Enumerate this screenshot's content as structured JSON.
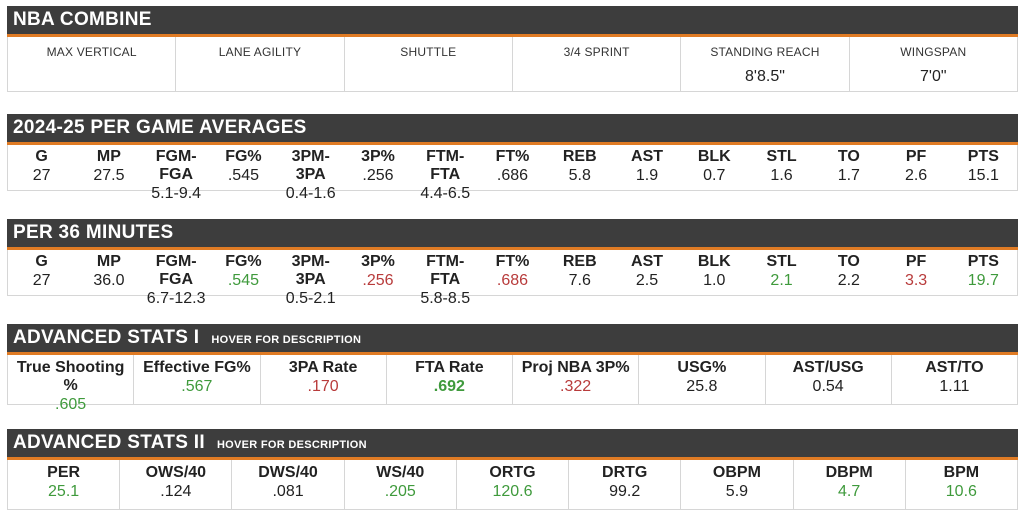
{
  "colors": {
    "header_bg": "#3d3d3d",
    "accent": "#e07b24",
    "positive": "#3f9a3c",
    "negative": "#b83b3b"
  },
  "combine": {
    "title": "NBA COMBINE",
    "columns": [
      {
        "label": "MAX VERTICAL",
        "value": ""
      },
      {
        "label": "LANE AGILITY",
        "value": ""
      },
      {
        "label": "SHUTTLE",
        "value": ""
      },
      {
        "label": "3/4 SPRINT",
        "value": ""
      },
      {
        "label": "STANDING REACH",
        "value": "8'8.5\""
      },
      {
        "label": "WINGSPAN",
        "value": "7'0\""
      }
    ]
  },
  "per_game": {
    "title": "2024-25 PER GAME AVERAGES",
    "columns": [
      {
        "label": "G",
        "value": "27"
      },
      {
        "label": "MP",
        "value": "27.5"
      },
      {
        "label": "FGM-FGA",
        "value": "5.1-9.4"
      },
      {
        "label": "FG%",
        "value": ".545"
      },
      {
        "label": "3PM-3PA",
        "value": "0.4-1.6"
      },
      {
        "label": "3P%",
        "value": ".256"
      },
      {
        "label": "FTM-FTA",
        "value": "4.4-6.5"
      },
      {
        "label": "FT%",
        "value": ".686"
      },
      {
        "label": "REB",
        "value": "5.8"
      },
      {
        "label": "AST",
        "value": "1.9"
      },
      {
        "label": "BLK",
        "value": "0.7"
      },
      {
        "label": "STL",
        "value": "1.6"
      },
      {
        "label": "TO",
        "value": "1.7"
      },
      {
        "label": "PF",
        "value": "2.6"
      },
      {
        "label": "PTS",
        "value": "15.1"
      }
    ]
  },
  "per36": {
    "title": "PER 36 MINUTES",
    "columns": [
      {
        "label": "G",
        "value": "27",
        "tone": ""
      },
      {
        "label": "MP",
        "value": "36.0",
        "tone": ""
      },
      {
        "label": "FGM-FGA",
        "value": "6.7-12.3",
        "tone": ""
      },
      {
        "label": "FG%",
        "value": ".545",
        "tone": "green"
      },
      {
        "label": "3PM-3PA",
        "value": "0.5-2.1",
        "tone": ""
      },
      {
        "label": "3P%",
        "value": ".256",
        "tone": "red"
      },
      {
        "label": "FTM-FTA",
        "value": "5.8-8.5",
        "tone": ""
      },
      {
        "label": "FT%",
        "value": ".686",
        "tone": "red"
      },
      {
        "label": "REB",
        "value": "7.6",
        "tone": ""
      },
      {
        "label": "AST",
        "value": "2.5",
        "tone": ""
      },
      {
        "label": "BLK",
        "value": "1.0",
        "tone": ""
      },
      {
        "label": "STL",
        "value": "2.1",
        "tone": "green"
      },
      {
        "label": "TO",
        "value": "2.2",
        "tone": ""
      },
      {
        "label": "PF",
        "value": "3.3",
        "tone": "red"
      },
      {
        "label": "PTS",
        "value": "19.7",
        "tone": "green"
      }
    ]
  },
  "advanced1": {
    "title": "ADVANCED STATS I",
    "hint": "HOVER FOR DESCRIPTION",
    "columns": [
      {
        "label": "True Shooting %",
        "value": ".605",
        "tone": "green"
      },
      {
        "label": "Effective FG%",
        "value": ".567",
        "tone": "green"
      },
      {
        "label": "3PA Rate",
        "value": ".170",
        "tone": "red"
      },
      {
        "label": "FTA Rate",
        "value": ".692",
        "tone": "green bold"
      },
      {
        "label": "Proj NBA 3P%",
        "value": ".322",
        "tone": "red"
      },
      {
        "label": "USG%",
        "value": "25.8",
        "tone": ""
      },
      {
        "label": "AST/USG",
        "value": "0.54",
        "tone": ""
      },
      {
        "label": "AST/TO",
        "value": "1.11",
        "tone": ""
      }
    ]
  },
  "advanced2": {
    "title": "ADVANCED STATS II",
    "hint": "HOVER FOR DESCRIPTION",
    "columns": [
      {
        "label": "PER",
        "value": "25.1",
        "tone": "green"
      },
      {
        "label": "OWS/40",
        "value": ".124",
        "tone": ""
      },
      {
        "label": "DWS/40",
        "value": ".081",
        "tone": ""
      },
      {
        "label": "WS/40",
        "value": ".205",
        "tone": "green"
      },
      {
        "label": "ORTG",
        "value": "120.6",
        "tone": "green"
      },
      {
        "label": "DRTG",
        "value": "99.2",
        "tone": ""
      },
      {
        "label": "OBPM",
        "value": "5.9",
        "tone": ""
      },
      {
        "label": "DBPM",
        "value": "4.7",
        "tone": "green"
      },
      {
        "label": "BPM",
        "value": "10.6",
        "tone": "green"
      }
    ]
  }
}
